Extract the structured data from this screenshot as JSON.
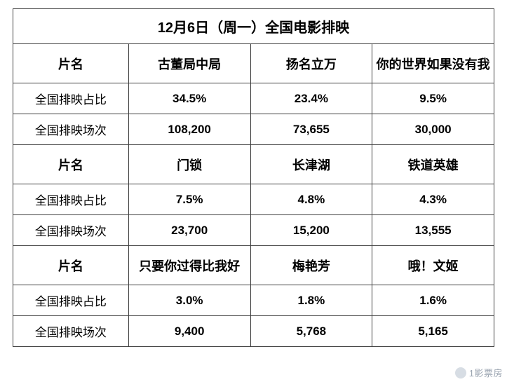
{
  "title": "12月6日（周一）全国电影排映",
  "labels": {
    "name": "片名",
    "share": "全国排映占比",
    "sessions": "全国排映场次"
  },
  "groups": [
    {
      "movies": [
        {
          "name": "古董局中局",
          "share": "34.5%",
          "sessions": "108,200"
        },
        {
          "name": "扬名立万",
          "share": "23.4%",
          "sessions": "73,655"
        },
        {
          "name": "你的世界如果没有我",
          "share": "9.5%",
          "sessions": "30,000"
        }
      ]
    },
    {
      "movies": [
        {
          "name": "门锁",
          "share": "7.5%",
          "sessions": "23,700"
        },
        {
          "name": "长津湖",
          "share": "4.8%",
          "sessions": "15,200"
        },
        {
          "name": "铁道英雄",
          "share": "4.3%",
          "sessions": "13,555"
        }
      ]
    },
    {
      "movies": [
        {
          "name": "只要你过得比我好",
          "share": "3.0%",
          "sessions": "9,400"
        },
        {
          "name": "梅艳芳",
          "share": "1.8%",
          "sessions": "5,768"
        },
        {
          "name": "哦！文姬",
          "share": "1.6%",
          "sessions": "5,165"
        }
      ]
    }
  ],
  "watermark": "1影票房",
  "colors": {
    "border": "#404040",
    "text": "#000000",
    "background": "#ffffff",
    "watermark": "#9ca6b2"
  },
  "typography": {
    "title_fontsize": 20,
    "header_fontsize": 18,
    "body_fontsize": 17,
    "font_family": "Microsoft YaHei"
  },
  "table": {
    "type": "table",
    "columns": 4,
    "col_widths_pct": [
      24,
      25.3,
      25.3,
      25.3
    ]
  }
}
